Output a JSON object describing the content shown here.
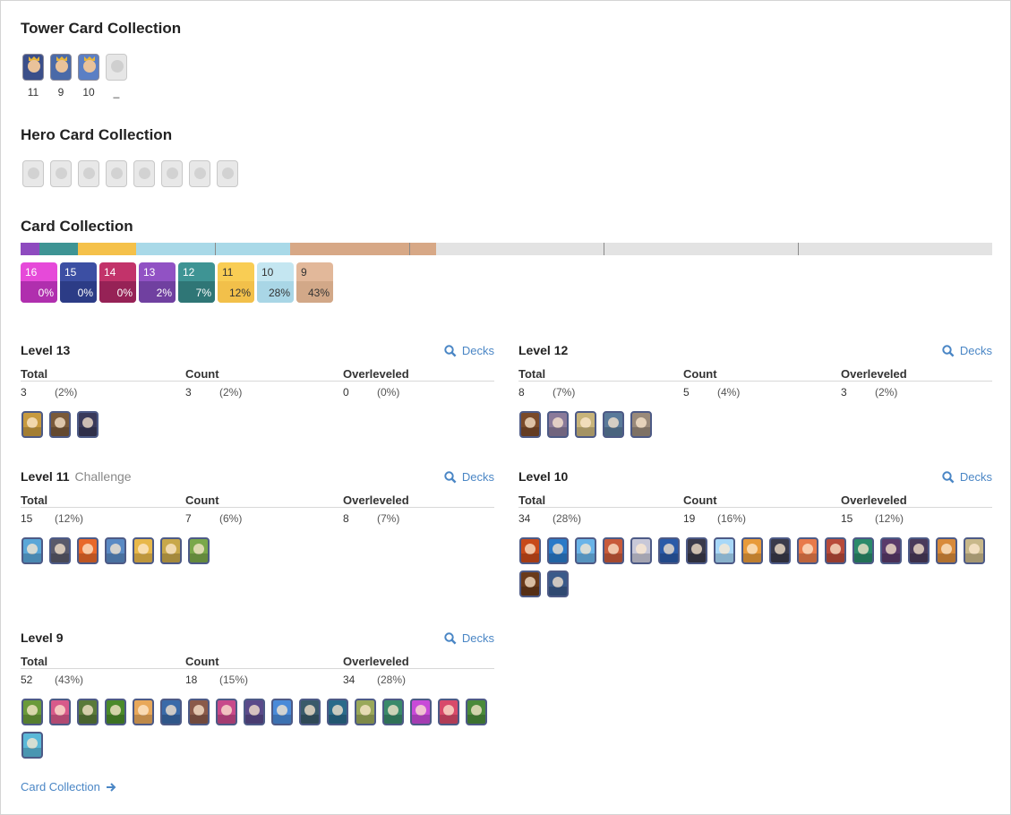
{
  "tower_section": {
    "title": "Tower Card Collection",
    "towers": [
      {
        "level": "11",
        "color": "#3b4f8a",
        "owned": true
      },
      {
        "level": "9",
        "color": "#4a6aa8",
        "owned": true
      },
      {
        "level": "10",
        "color": "#5b7fc4",
        "owned": true
      },
      {
        "level": "_",
        "color": "#e6e6e6",
        "owned": false
      }
    ]
  },
  "hero_section": {
    "title": "Hero Card Collection",
    "heroes_count_shown": 8
  },
  "collection_section": {
    "title": "Card Collection",
    "bar_colors": [
      "#8e4bbf",
      "#3e9494",
      "#f5c14a",
      "#a9d9e8",
      "#a9d9e8",
      "#d7a886",
      "#d7a886"
    ],
    "levels": [
      {
        "level": "16",
        "pct": "0%",
        "top": "#e64ad9",
        "bottom": "#b02fae",
        "text": "#fff"
      },
      {
        "level": "15",
        "pct": "0%",
        "top": "#3c4fa3",
        "bottom": "#2c3c86",
        "text": "#fff"
      },
      {
        "level": "14",
        "pct": "0%",
        "top": "#c2336a",
        "bottom": "#962256",
        "text": "#fff"
      },
      {
        "level": "13",
        "pct": "2%",
        "top": "#9152c4",
        "bottom": "#7040a0",
        "text": "#fff"
      },
      {
        "level": "12",
        "pct": "7%",
        "top": "#3e9494",
        "bottom": "#2f7676",
        "text": "#fff"
      },
      {
        "level": "11",
        "pct": "12%",
        "top": "#f9cd54",
        "bottom": "#f2c04a",
        "text": "#333"
      },
      {
        "level": "10",
        "pct": "28%",
        "top": "#c4e6f1",
        "bottom": "#a9d6e6",
        "text": "#333"
      },
      {
        "level": "9",
        "pct": "43%",
        "top": "#e2b89a",
        "bottom": "#d2a888",
        "text": "#333"
      }
    ]
  },
  "headers": {
    "total": "Total",
    "count": "Count",
    "overleveled": "Overleveled"
  },
  "decks_label": "Decks",
  "panels": [
    {
      "title": "Level 13",
      "subtitle": "",
      "total": "3",
      "total_pct": "(2%)",
      "count": "3",
      "count_pct": "(2%)",
      "over": "0",
      "over_pct": "(0%)",
      "cards": [
        "#c79a3f",
        "#7a5a3a",
        "#3a3a5a"
      ]
    },
    {
      "title": "Level 12",
      "subtitle": "",
      "total": "8",
      "total_pct": "(7%)",
      "count": "5",
      "count_pct": "(4%)",
      "over": "3",
      "over_pct": "(2%)",
      "cards": [
        "#7a4a2a",
        "#8a7a9a",
        "#c8b47a",
        "#5a7a9a",
        "#9a8a7a"
      ]
    },
    {
      "title": "Level 11",
      "subtitle": "Challenge",
      "total": "15",
      "total_pct": "(12%)",
      "count": "7",
      "count_pct": "(6%)",
      "over": "8",
      "over_pct": "(7%)",
      "cards": [
        "#5aa7d8",
        "#5a5a6a",
        "#e8682a",
        "#5a8ac4",
        "#e8b84a",
        "#c8a84a",
        "#7aa84a"
      ]
    },
    {
      "title": "Level 10",
      "subtitle": "",
      "total": "34",
      "total_pct": "(28%)",
      "count": "19",
      "count_pct": "(16%)",
      "over": "15",
      "over_pct": "(12%)",
      "cards": [
        "#c84a1a",
        "#2a7ac8",
        "#6ab4e8",
        "#c85a3a",
        "#c8c8d8",
        "#2a5aa8",
        "#3a3a4a",
        "#a8d8f8",
        "#e89a3a",
        "#3a3a4a",
        "#e87a4a",
        "#b84a3a",
        "#2a8a6a",
        "#5a3a6a",
        "#4a3a5a",
        "#d88a3a",
        "#c8b88a",
        "#6a3a1a",
        "#3a5a8a"
      ]
    },
    {
      "title": "Level 9",
      "subtitle": "",
      "total": "52",
      "total_pct": "(43%)",
      "count": "18",
      "count_pct": "(15%)",
      "over": "34",
      "over_pct": "(28%)",
      "cards": [
        "#6a9a3a",
        "#d85a8a",
        "#5a7a3a",
        "#4a8a2a",
        "#e8a85a",
        "#3a6aa8",
        "#8a5a4a",
        "#c84a8a",
        "#5a4a8a",
        "#4a8ad8",
        "#3a5a6a",
        "#2a6a8a",
        "#9aa85a",
        "#3a8a6a",
        "#c84ad8",
        "#d84a6a",
        "#4a8a3a",
        "#5ab8d8"
      ]
    }
  ],
  "footer": {
    "link": "Card Collection"
  }
}
